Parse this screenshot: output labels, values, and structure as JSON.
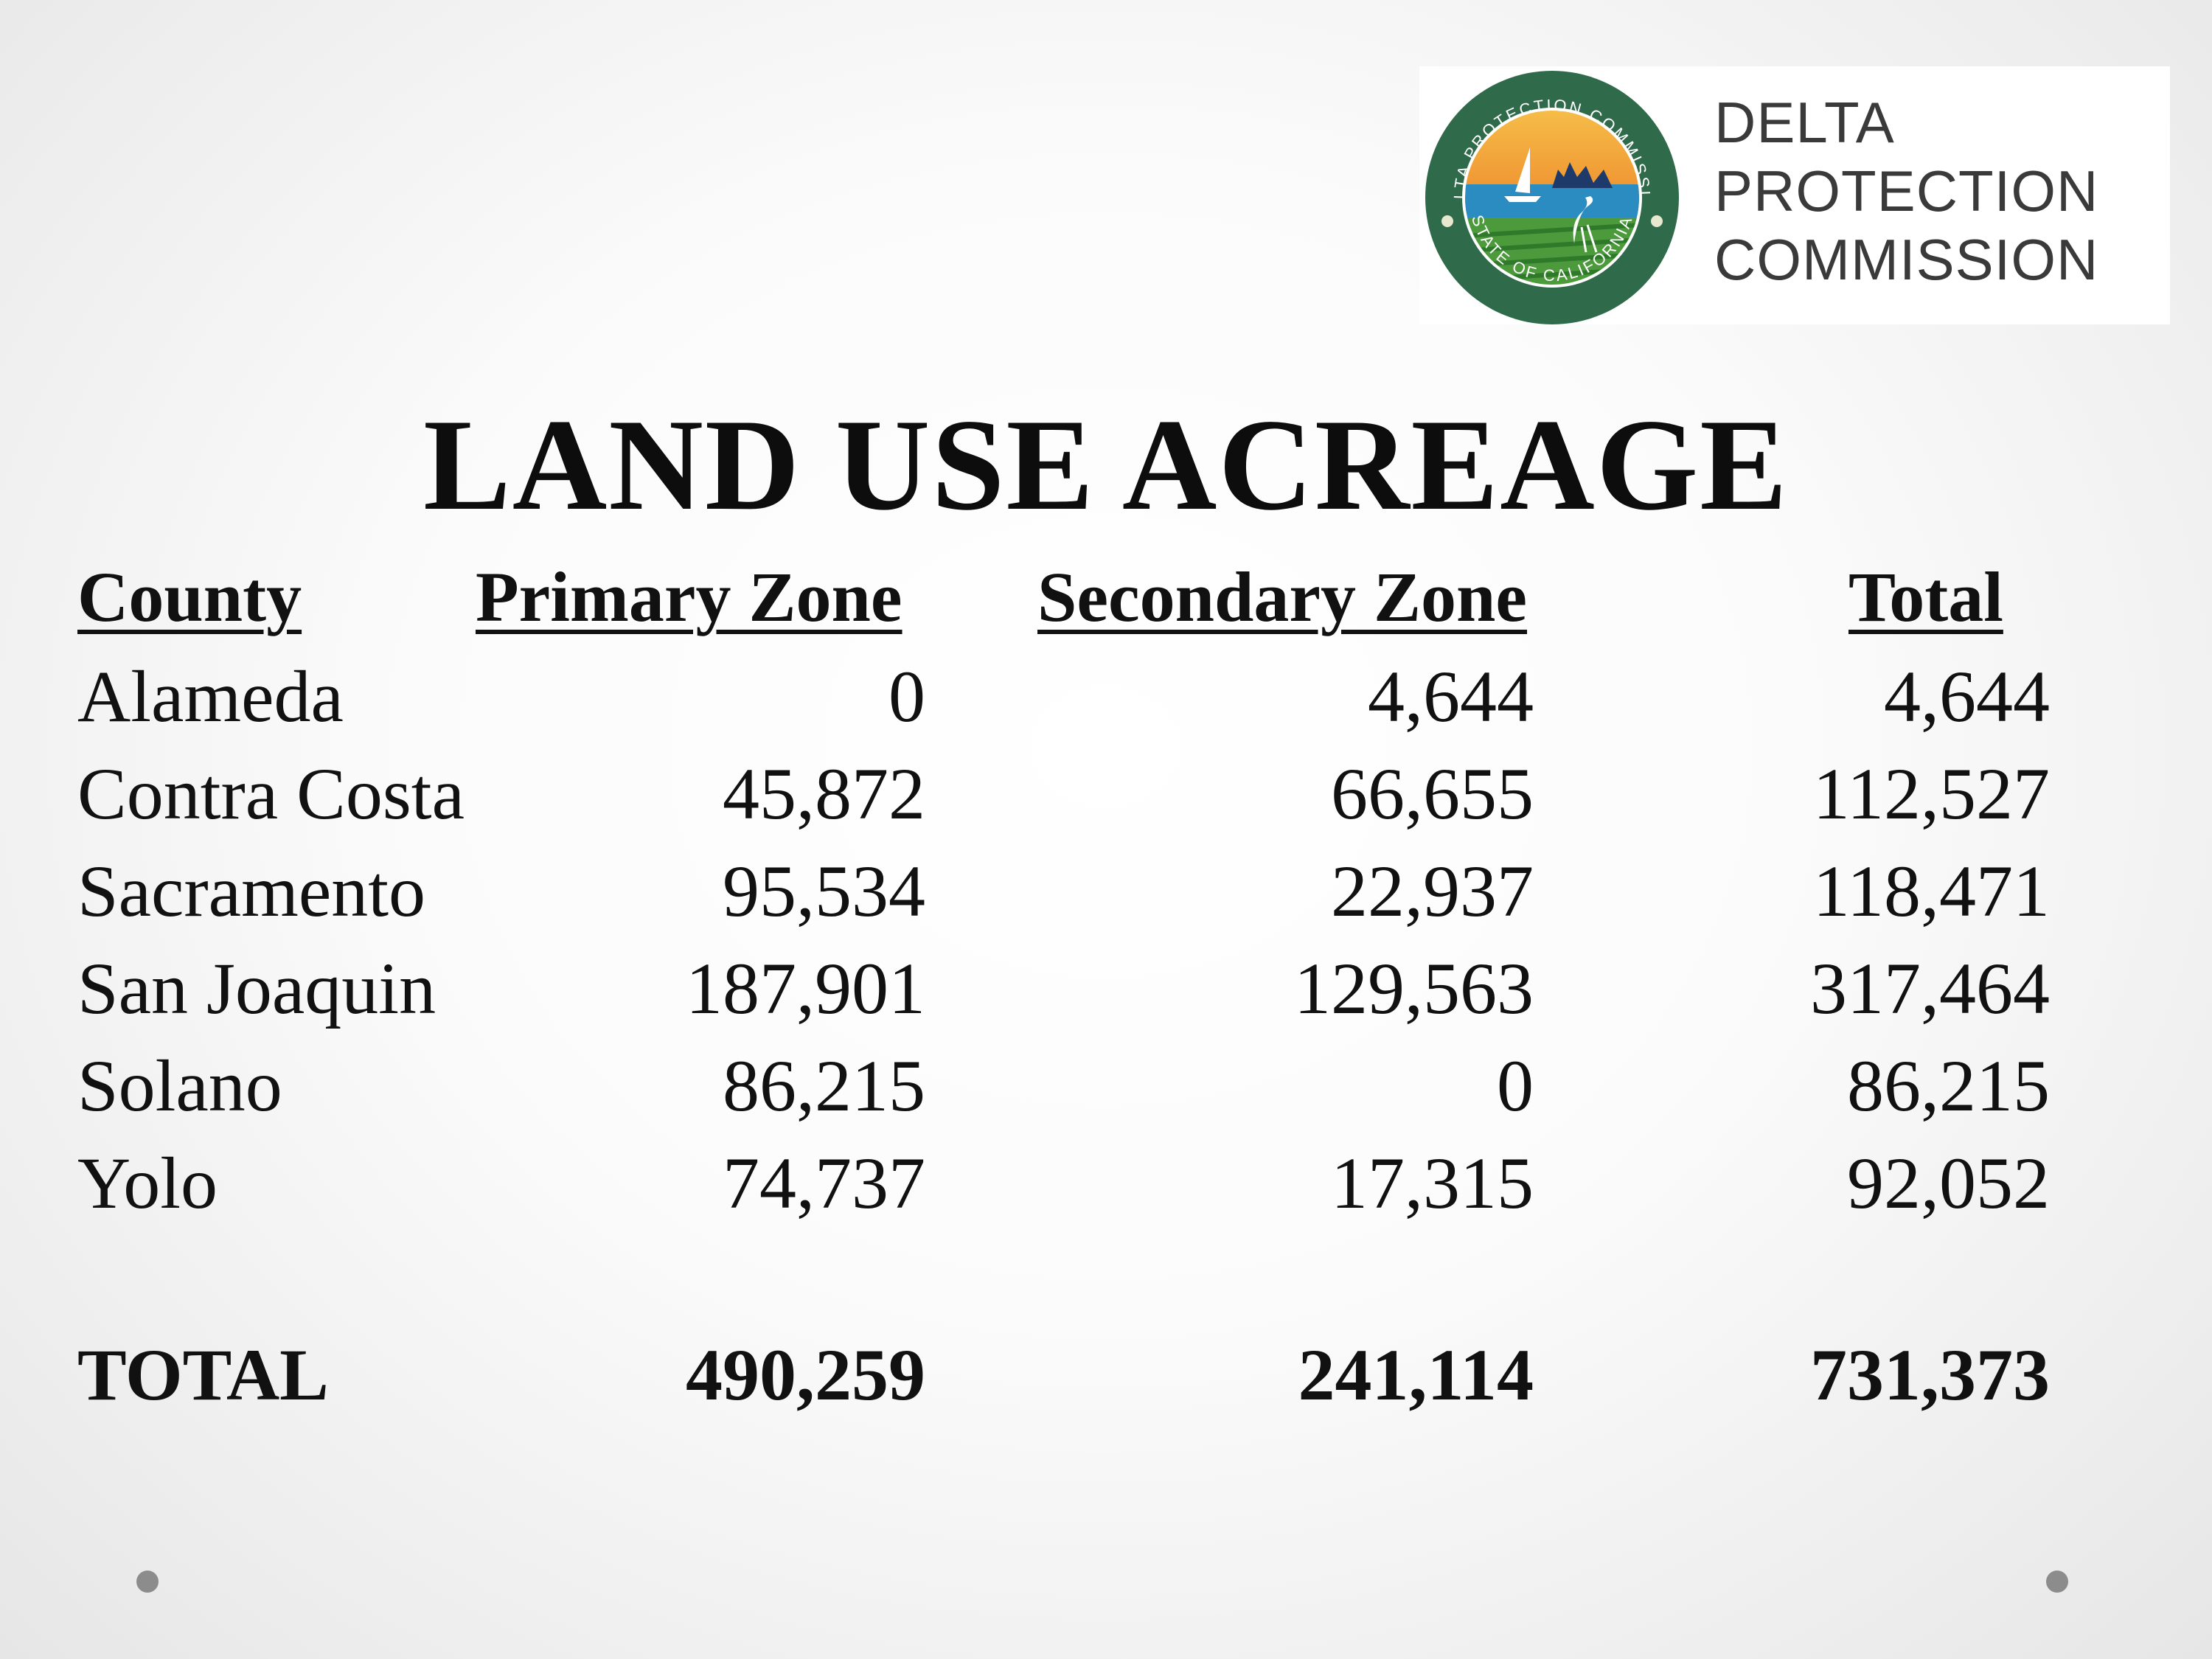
{
  "logo": {
    "seal_top_text": "DELTA PROTECTION COMMISSION",
    "seal_bottom_text": "STATE OF CALIFORNIA",
    "wordmark": [
      "DELTA",
      "PROTECTION",
      "COMMISSION"
    ],
    "colors": {
      "seal_ring": "#2f6b4a",
      "sky_orange": "#f0a13a",
      "water_blue": "#2a8cc0",
      "field_green": "#4c9a3c"
    }
  },
  "title": "LAND USE ACREAGE",
  "table": {
    "headers": {
      "county": "County",
      "primary": "Primary Zone",
      "secondary": "Secondary Zone",
      "total": "Total"
    },
    "rows": [
      {
        "county": "Alameda",
        "primary": "0",
        "secondary": "4,644",
        "total": "4,644"
      },
      {
        "county": "Contra Costa",
        "primary": "45,872",
        "secondary": "66,655",
        "total": "112,527"
      },
      {
        "county": "Sacramento",
        "primary": "95,534",
        "secondary": "22,937",
        "total": "118,471"
      },
      {
        "county": "San Joaquin",
        "primary": "187,901",
        "secondary": "129,563",
        "total": "317,464"
      },
      {
        "county": "Solano",
        "primary": "86,215",
        "secondary": "0",
        "total": "86,215"
      },
      {
        "county": "Yolo",
        "primary": "74,737",
        "secondary": "17,315",
        "total": "92,052"
      }
    ],
    "totals": {
      "label": "TOTAL",
      "primary": "490,259",
      "secondary": "241,114",
      "total": "731,373"
    }
  }
}
